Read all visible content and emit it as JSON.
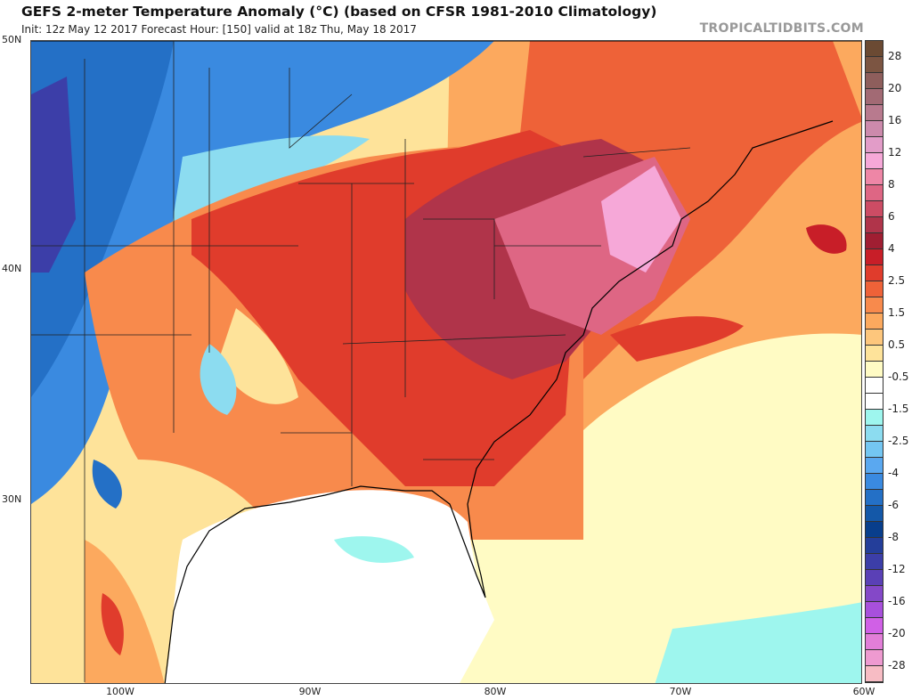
{
  "header": {
    "title": "GEFS 2-meter Temperature Anomaly (°C) (based on CFSR 1981-2010 Climatology)",
    "subtitle": "Init: 12z May 12 2017   Forecast Hour: [150]   valid at 18z Thu, May 18 2017",
    "watermark": "TROPICALTIDBITS.COM"
  },
  "axes": {
    "lat_labels": [
      "50N",
      "40N",
      "30N"
    ],
    "lon_labels": [
      "100W",
      "90W",
      "80W",
      "70W",
      "60W"
    ]
  },
  "colorbar": {
    "labels": [
      "28",
      "20",
      "16",
      "12",
      "8",
      "6",
      "4",
      "2.5",
      "1.5",
      "0.5",
      "-0.5",
      "-1.5",
      "-2.5",
      "-4",
      "-6",
      "-8",
      "-12",
      "-16",
      "-20",
      "-28"
    ],
    "colors": [
      "#6b4a33",
      "#7c5542",
      "#8e5e5c",
      "#a26a74",
      "#b87a8e",
      "#cc8aac",
      "#e29cc8",
      "#f6a8d8",
      "#ee86a6",
      "#de6684",
      "#cc4c64",
      "#b0344a",
      "#a01e32",
      "#c81e28",
      "#e03c2c",
      "#ee6238",
      "#f88a4c",
      "#fca95e",
      "#fdc67c",
      "#fee39a",
      "#fffbc4",
      "#ffffff",
      "#ffffff",
      "#9ef6ee",
      "#8cdcf0",
      "#74c6f2",
      "#5aa8f0",
      "#3a8ae0",
      "#2470c6",
      "#1458a8",
      "#083e8c",
      "#243e9a",
      "#3c3ea8",
      "#5a40b6",
      "#8448c8",
      "#a850dc",
      "#d060e6",
      "#e27ed8",
      "#ee9ad0",
      "#f7bcc4",
      "#fcd0b8"
    ]
  }
}
